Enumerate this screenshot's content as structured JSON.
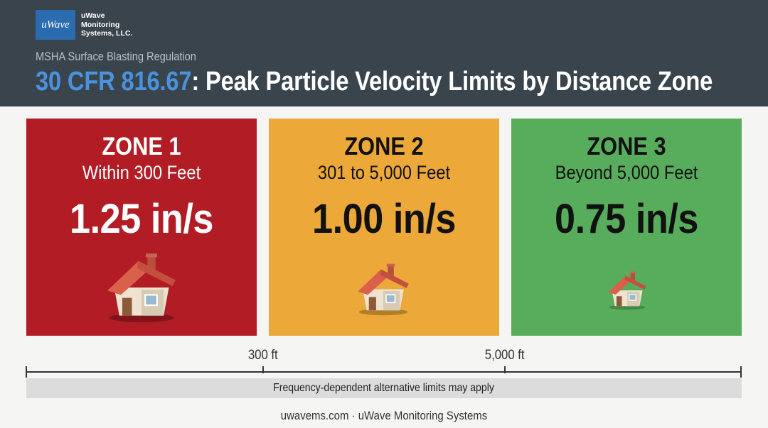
{
  "brand": {
    "logo_mark": "uWave",
    "name_lines": [
      "uWave",
      "Monitoring",
      "Systems, LLC."
    ]
  },
  "header": {
    "subtitle": "MSHA Surface Blasting Regulation",
    "title_code": "30 CFR 816.67",
    "title_rest": ": Peak Particle Velocity Limits by Distance Zone"
  },
  "zones": [
    {
      "title": "ZONE 1",
      "range": "Within 300 Feet",
      "limit": "1.25 in/s",
      "color": "#b21c24"
    },
    {
      "title": "ZONE 2",
      "range": "301 to 5,000 Feet",
      "limit": "1.00 in/s",
      "color": "#eca838"
    },
    {
      "title": "ZONE 3",
      "range": "Beyond 5,000 Feet",
      "limit": "0.75 in/s",
      "color": "#58ad5c"
    }
  ],
  "icons": {
    "house": "house-icon"
  },
  "scale": {
    "markers": [
      "300 ft",
      "5,000 ft"
    ],
    "note": "Frequency-dependent alternative limits may apply"
  },
  "footer": {
    "text": "uwavems.com · uWave Monitoring Systems"
  }
}
